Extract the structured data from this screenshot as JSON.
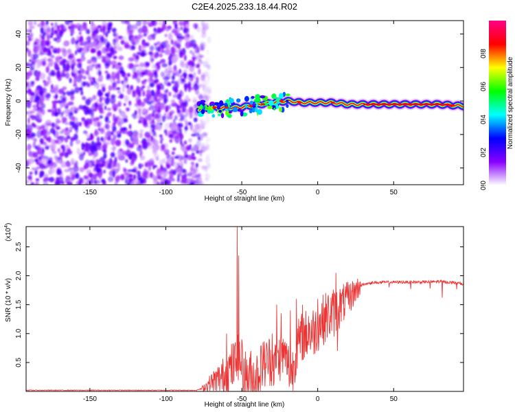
{
  "title": "C2E4.2025.233.18.44.R02",
  "chart_data": [
    {
      "type": "heatmap",
      "name": "spectrogram",
      "xlabel": "Height of straight line (km)",
      "ylabel": "Frequency (Hz)",
      "xlim": [
        -192,
        96
      ],
      "ylim": [
        -50,
        48
      ],
      "xticks": [
        -150,
        -100,
        -50,
        0,
        50
      ],
      "yticks": [
        -40,
        -20,
        0,
        20,
        40
      ],
      "noise_region": [
        -192,
        -78
      ],
      "ridge": [
        {
          "x": -78,
          "y": -5
        },
        {
          "x": -70,
          "y": -4
        },
        {
          "x": -60,
          "y": -4
        },
        {
          "x": -52,
          "y": -4
        },
        {
          "x": -45,
          "y": -3
        },
        {
          "x": -38,
          "y": -2
        },
        {
          "x": -30,
          "y": -1
        },
        {
          "x": -20,
          "y": 0
        },
        {
          "x": -10,
          "y": -1
        },
        {
          "x": 0,
          "y": -1
        },
        {
          "x": 10,
          "y": -1
        },
        {
          "x": 20,
          "y": -2
        },
        {
          "x": 40,
          "y": -2
        },
        {
          "x": 60,
          "y": -2
        },
        {
          "x": 80,
          "y": -2
        },
        {
          "x": 96,
          "y": -3
        }
      ],
      "colorbar": {
        "label": "Normalized spectral amplitude",
        "range": [
          0,
          1
        ],
        "ticks": [
          "0.0",
          "0.2",
          "0.4",
          "0.6",
          "0.8"
        ],
        "tick_values": [
          0.0,
          0.2,
          0.4,
          0.6,
          0.8
        ],
        "colors": [
          "#ffffff",
          "#8800ff",
          "#0000ff",
          "#00ffff",
          "#00ff00",
          "#ffff00",
          "#ff0000",
          "#ff0088"
        ]
      }
    },
    {
      "type": "line",
      "name": "snr",
      "xlabel": "Height of straight line (km)",
      "ylabel": "SNR (10 * v/v)",
      "scale_note": "(x10",
      "scale_exp": "4",
      "scale_close": ")",
      "xlim": [
        -192,
        96
      ],
      "ylim": [
        0,
        2.85
      ],
      "xticks": [
        -150,
        -100,
        -50,
        0,
        50
      ],
      "yticks": [
        0.5,
        1.0,
        1.5,
        2.0,
        2.5
      ],
      "ytick_labels": [
        "0.5",
        "1.0",
        "1.5",
        "2.0",
        "2.5"
      ],
      "color": "#ee3333",
      "anchors": [
        [
          -192,
          0.02
        ],
        [
          -80,
          0.02
        ],
        [
          -76,
          0.05
        ],
        [
          -72,
          0.12
        ],
        [
          -68,
          0.18
        ],
        [
          -62,
          0.25
        ],
        [
          -57,
          0.4
        ],
        [
          -52,
          0.55
        ],
        [
          -48,
          0.3
        ],
        [
          -44,
          0.22
        ],
        [
          -40,
          0.3
        ],
        [
          -36,
          0.45
        ],
        [
          -32,
          0.55
        ],
        [
          -28,
          0.45
        ],
        [
          -24,
          0.65
        ],
        [
          -20,
          0.5
        ],
        [
          -17,
          0.3
        ],
        [
          -14,
          0.75
        ],
        [
          -10,
          0.95
        ],
        [
          -6,
          1.0
        ],
        [
          -2,
          1.05
        ],
        [
          2,
          1.2
        ],
        [
          6,
          1.3
        ],
        [
          10,
          1.35
        ],
        [
          14,
          1.45
        ],
        [
          18,
          1.55
        ],
        [
          22,
          1.65
        ],
        [
          26,
          1.78
        ],
        [
          30,
          1.85
        ],
        [
          36,
          1.88
        ],
        [
          50,
          1.89
        ],
        [
          70,
          1.89
        ],
        [
          80,
          1.9
        ],
        [
          90,
          1.88
        ],
        [
          96,
          1.86
        ]
      ],
      "spikes": [
        [
          -60,
          1.0
        ],
        [
          -53,
          2.85
        ],
        [
          -52,
          2.35
        ],
        [
          -50,
          0.9
        ],
        [
          -44,
          0.7
        ],
        [
          -36,
          0.85
        ],
        [
          -30,
          1.0
        ],
        [
          -27,
          1.5
        ],
        [
          -24,
          1.35
        ],
        [
          -22,
          0.55
        ],
        [
          -18,
          1.4
        ],
        [
          -14,
          1.6
        ],
        [
          -10,
          1.5
        ],
        [
          -6,
          1.3
        ],
        [
          0,
          1.6
        ],
        [
          6,
          1.45
        ],
        [
          12,
          2.05
        ],
        [
          13,
          0.7
        ],
        [
          20,
          1.8
        ],
        [
          28,
          1.9
        ],
        [
          47,
          1.8
        ],
        [
          74,
          1.78
        ],
        [
          82,
          1.62
        ],
        [
          93,
          1.87
        ]
      ]
    }
  ]
}
